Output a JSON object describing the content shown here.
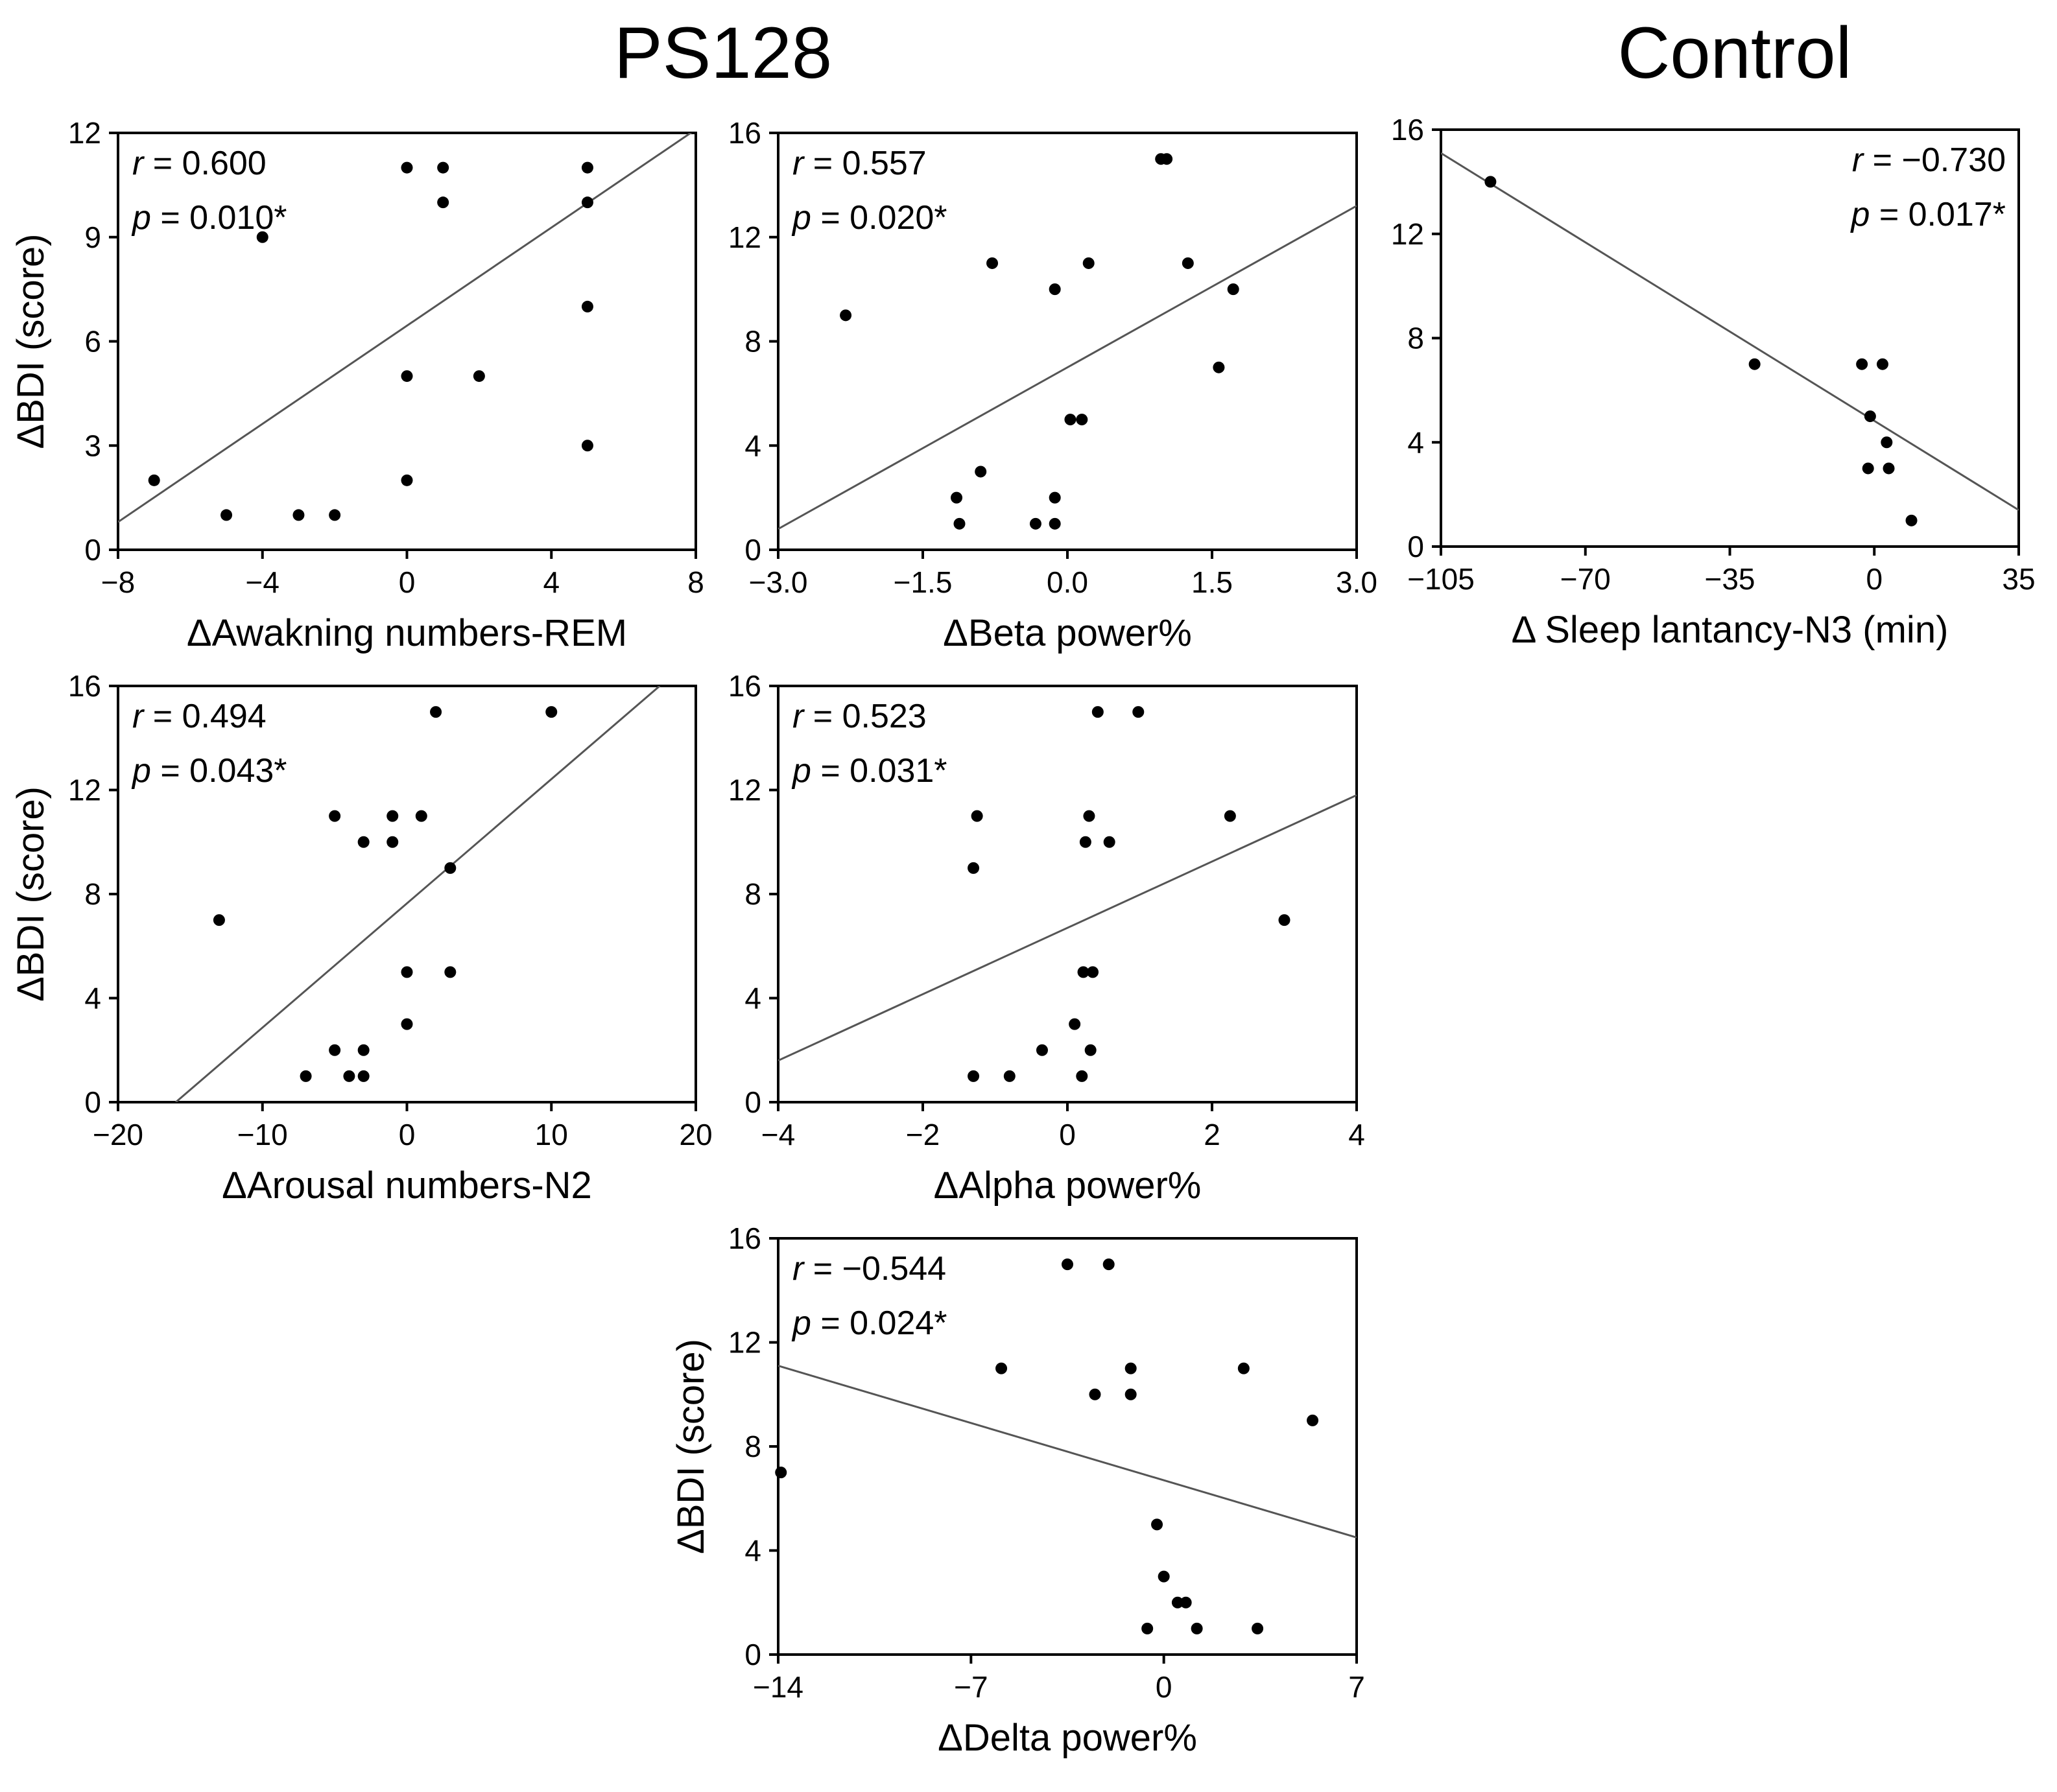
{
  "headings": {
    "left": "PS128",
    "right": "Control"
  },
  "colors": {
    "points": "#000000",
    "fit_line": "#555555",
    "axes": "#000000"
  },
  "chart_data": [
    {
      "type": "scatter",
      "group": "PS128",
      "title": "",
      "xlabel": "ΔAwakning numbers-REM",
      "ylabel": "ΔBDI (score)",
      "xlim": [
        -8,
        8
      ],
      "ylim": [
        0,
        12
      ],
      "xticks": [
        -8,
        -4,
        0,
        4,
        8
      ],
      "yticks": [
        0,
        3,
        6,
        9,
        12
      ],
      "xtick_labels": [
        "−8",
        "−4",
        "0",
        "4",
        "8"
      ],
      "ytick_labels": [
        "0",
        "3",
        "6",
        "9",
        "12"
      ],
      "stats": {
        "r_label": "r",
        "r_text": " = 0.600",
        "p_label": "p",
        "p_text": " = 0.010*"
      },
      "stats_position": "top-left",
      "fit": {
        "x1": -8,
        "y1": 0.8,
        "x2": 8,
        "y2": 12.1
      },
      "points": [
        {
          "x": -7,
          "y": 2
        },
        {
          "x": -5,
          "y": 1
        },
        {
          "x": -4,
          "y": 9
        },
        {
          "x": -3,
          "y": 1
        },
        {
          "x": -2,
          "y": 1
        },
        {
          "x": 0,
          "y": 11
        },
        {
          "x": 0,
          "y": 5
        },
        {
          "x": 0,
          "y": 2
        },
        {
          "x": 1,
          "y": 11
        },
        {
          "x": 1,
          "y": 10
        },
        {
          "x": 2,
          "y": 5
        },
        {
          "x": 5,
          "y": 11
        },
        {
          "x": 5,
          "y": 10
        },
        {
          "x": 5,
          "y": 7
        },
        {
          "x": 5,
          "y": 3
        }
      ]
    },
    {
      "type": "scatter",
      "group": "PS128",
      "title": "",
      "xlabel": "ΔBeta power%",
      "ylabel": "",
      "xlim": [
        -3.0,
        3.0
      ],
      "ylim": [
        0,
        16
      ],
      "xticks": [
        -3.0,
        -1.5,
        0.0,
        1.5,
        3.0
      ],
      "yticks": [
        0,
        4,
        8,
        12,
        16
      ],
      "xtick_labels": [
        "−3.0",
        "−1.5",
        "0.0",
        "1.5",
        "3.0"
      ],
      "ytick_labels": [
        "0",
        "4",
        "8",
        "12",
        "16"
      ],
      "stats": {
        "r_label": "r",
        "r_text": " = 0.557",
        "p_label": "p",
        "p_text": " = 0.020*"
      },
      "stats_position": "top-left",
      "fit": {
        "x1": -3.0,
        "y1": 0.8,
        "x2": 3.0,
        "y2": 13.2
      },
      "points": [
        {
          "x": -2.3,
          "y": 9
        },
        {
          "x": -1.15,
          "y": 2
        },
        {
          "x": -1.12,
          "y": 1
        },
        {
          "x": -0.9,
          "y": 3
        },
        {
          "x": -0.78,
          "y": 11
        },
        {
          "x": -0.33,
          "y": 1
        },
        {
          "x": -0.13,
          "y": 10
        },
        {
          "x": -0.13,
          "y": 2
        },
        {
          "x": -0.13,
          "y": 1
        },
        {
          "x": 0.03,
          "y": 5
        },
        {
          "x": 0.15,
          "y": 5
        },
        {
          "x": 0.22,
          "y": 11
        },
        {
          "x": 0.97,
          "y": 15
        },
        {
          "x": 1.03,
          "y": 15
        },
        {
          "x": 1.25,
          "y": 11
        },
        {
          "x": 1.57,
          "y": 7
        },
        {
          "x": 1.72,
          "y": 10
        }
      ]
    },
    {
      "type": "scatter",
      "group": "Control",
      "title": "",
      "xlabel": "Δ Sleep lantancy-N3 (min)",
      "ylabel": "",
      "xlim": [
        -105,
        35
      ],
      "ylim": [
        0,
        16
      ],
      "xticks": [
        -105,
        -70,
        -35,
        0,
        35
      ],
      "yticks": [
        0,
        4,
        8,
        12,
        16
      ],
      "xtick_labels": [
        "−105",
        "−70",
        "−35",
        "0",
        "35"
      ],
      "ytick_labels": [
        "0",
        "4",
        "8",
        "12",
        "16"
      ],
      "stats": {
        "r_label": "r",
        "r_text": " = −0.730",
        "p_label": "p",
        "p_text": " = 0.017*"
      },
      "stats_position": "top-right",
      "fit": {
        "x1": -105,
        "y1": 15.1,
        "x2": 35,
        "y2": 1.4
      },
      "points": [
        {
          "x": -93,
          "y": 14
        },
        {
          "x": -29,
          "y": 7
        },
        {
          "x": -3,
          "y": 7
        },
        {
          "x": 2,
          "y": 7
        },
        {
          "x": -1,
          "y": 5
        },
        {
          "x": 3,
          "y": 4
        },
        {
          "x": -1.5,
          "y": 3
        },
        {
          "x": 3.5,
          "y": 3
        },
        {
          "x": 9,
          "y": 1
        }
      ]
    },
    {
      "type": "scatter",
      "group": "PS128",
      "title": "",
      "xlabel": "ΔArousal numbers-N2",
      "ylabel": "ΔBDI (score)",
      "xlim": [
        -20,
        20
      ],
      "ylim": [
        0,
        16
      ],
      "xticks": [
        -20,
        -10,
        0,
        10,
        20
      ],
      "yticks": [
        0,
        4,
        8,
        12,
        16
      ],
      "xtick_labels": [
        "−20",
        "−10",
        "0",
        "10",
        "20"
      ],
      "ytick_labels": [
        "0",
        "4",
        "8",
        "12",
        "16"
      ],
      "stats": {
        "r_label": "r",
        "r_text": " = 0.494",
        "p_label": "p",
        "p_text": " = 0.043*"
      },
      "stats_position": "top-left",
      "fit": {
        "x1": -16,
        "y1": 0,
        "x2": 17.5,
        "y2": 16
      },
      "points": [
        {
          "x": -13,
          "y": 7
        },
        {
          "x": -7,
          "y": 1
        },
        {
          "x": -5,
          "y": 11
        },
        {
          "x": -5,
          "y": 2
        },
        {
          "x": -4,
          "y": 1
        },
        {
          "x": -3,
          "y": 10
        },
        {
          "x": -3,
          "y": 2
        },
        {
          "x": -3,
          "y": 1
        },
        {
          "x": -1,
          "y": 11
        },
        {
          "x": -1,
          "y": 10
        },
        {
          "x": 0,
          "y": 5
        },
        {
          "x": 0,
          "y": 3
        },
        {
          "x": 1,
          "y": 11
        },
        {
          "x": 2,
          "y": 15
        },
        {
          "x": 3,
          "y": 9
        },
        {
          "x": 3,
          "y": 5
        },
        {
          "x": 10,
          "y": 15
        }
      ]
    },
    {
      "type": "scatter",
      "group": "PS128",
      "title": "",
      "xlabel": "ΔAlpha power%",
      "ylabel": "",
      "xlim": [
        -4,
        4
      ],
      "ylim": [
        0,
        16
      ],
      "xticks": [
        -4,
        -2,
        0,
        2,
        4
      ],
      "yticks": [
        0,
        4,
        8,
        12,
        16
      ],
      "xtick_labels": [
        "−4",
        "−2",
        "0",
        "2",
        "4"
      ],
      "ytick_labels": [
        "0",
        "4",
        "8",
        "12",
        "16"
      ],
      "stats": {
        "r_label": "r",
        "r_text": " = 0.523",
        "p_label": "p",
        "p_text": " = 0.031*"
      },
      "stats_position": "top-left",
      "fit": {
        "x1": -4,
        "y1": 1.6,
        "x2": 4,
        "y2": 11.8
      },
      "points": [
        {
          "x": -1.25,
          "y": 11
        },
        {
          "x": -1.3,
          "y": 9
        },
        {
          "x": -1.3,
          "y": 1
        },
        {
          "x": -0.8,
          "y": 1
        },
        {
          "x": -0.35,
          "y": 2
        },
        {
          "x": 0.1,
          "y": 3
        },
        {
          "x": 0.2,
          "y": 1
        },
        {
          "x": 0.22,
          "y": 5
        },
        {
          "x": 0.25,
          "y": 10
        },
        {
          "x": 0.3,
          "y": 11
        },
        {
          "x": 0.32,
          "y": 2
        },
        {
          "x": 0.35,
          "y": 5
        },
        {
          "x": 0.42,
          "y": 15
        },
        {
          "x": 0.58,
          "y": 10
        },
        {
          "x": 0.98,
          "y": 15
        },
        {
          "x": 2.25,
          "y": 11
        },
        {
          "x": 3.0,
          "y": 7
        }
      ]
    },
    {
      "type": "scatter",
      "group": "PS128",
      "title": "",
      "xlabel": "ΔDelta power%",
      "ylabel": "ΔBDI (score)",
      "xlim": [
        -14,
        7
      ],
      "ylim": [
        0,
        16
      ],
      "xticks": [
        -14,
        -7,
        0,
        7
      ],
      "yticks": [
        0,
        4,
        8,
        12,
        16
      ],
      "xtick_labels": [
        "−14",
        "−7",
        "0",
        "7"
      ],
      "ytick_labels": [
        "0",
        "4",
        "8",
        "12",
        "16"
      ],
      "stats": {
        "r_label": "r",
        "r_text": " = −0.544",
        "p_label": "p",
        "p_text": " = 0.024*"
      },
      "stats_position": "top-left",
      "fit": {
        "x1": -14,
        "y1": 11.1,
        "x2": 7,
        "y2": 4.5
      },
      "points": [
        {
          "x": -13.9,
          "y": 7
        },
        {
          "x": -5.9,
          "y": 11
        },
        {
          "x": -3.5,
          "y": 15
        },
        {
          "x": -2.5,
          "y": 10
        },
        {
          "x": -2.0,
          "y": 15
        },
        {
          "x": -1.2,
          "y": 11
        },
        {
          "x": -1.2,
          "y": 10
        },
        {
          "x": -0.6,
          "y": 1
        },
        {
          "x": -0.25,
          "y": 5
        },
        {
          "x": 0,
          "y": 3
        },
        {
          "x": 0.5,
          "y": 2
        },
        {
          "x": 0.8,
          "y": 2
        },
        {
          "x": 1.2,
          "y": 1
        },
        {
          "x": 2.9,
          "y": 11
        },
        {
          "x": 3.4,
          "y": 1
        },
        {
          "x": 5.4,
          "y": 9
        }
      ]
    }
  ]
}
